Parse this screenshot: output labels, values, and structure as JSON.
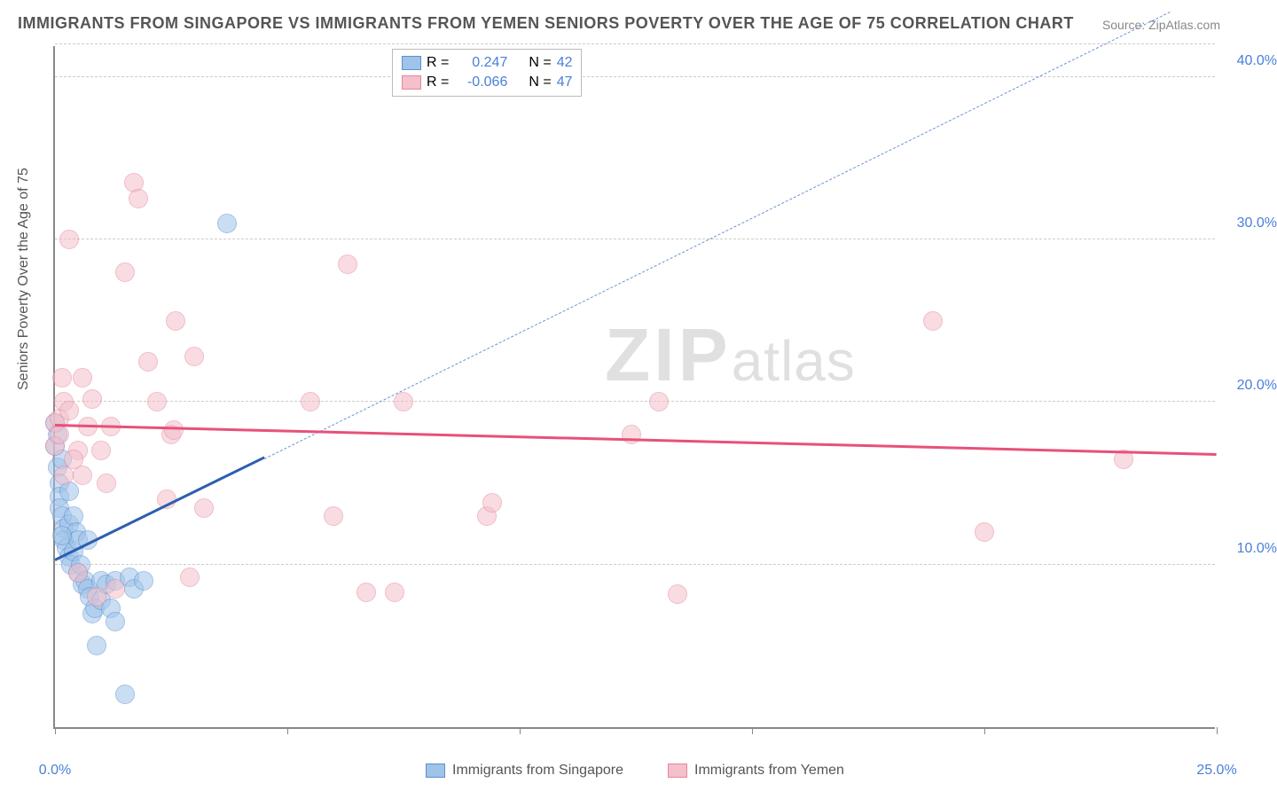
{
  "title": "IMMIGRANTS FROM SINGAPORE VS IMMIGRANTS FROM YEMEN SENIORS POVERTY OVER THE AGE OF 75 CORRELATION CHART",
  "source": "Source: ZipAtlas.com",
  "y_axis_label": "Seniors Poverty Over the Age of 75",
  "watermark_main": "ZIP",
  "watermark_sub": "atlas",
  "chart": {
    "type": "scatter",
    "xlim": [
      0,
      25
    ],
    "ylim": [
      0,
      42
    ],
    "x_ticks": [
      0,
      5,
      10,
      15,
      20,
      25
    ],
    "x_tick_labels": [
      "0.0%",
      "",
      "",
      "",
      "",
      "25.0%"
    ],
    "y_ticks": [
      10,
      20,
      30,
      40
    ],
    "y_tick_labels": [
      "10.0%",
      "20.0%",
      "30.0%",
      "40.0%"
    ],
    "grid_color": "#cccccc",
    "background_color": "#ffffff",
    "point_radius": 11,
    "point_stroke_width": 1.5,
    "series": [
      {
        "name": "Immigrants from Singapore",
        "fill": "#9fc4ea",
        "stroke": "#5b8fd0",
        "fill_opacity": 0.55,
        "R_label": "R =",
        "R": "0.247",
        "N_label": "N =",
        "N": "42",
        "trend_solid": {
          "x1": 0,
          "y1": 10.2,
          "x2": 4.5,
          "y2": 16.5,
          "color": "#2d5fb0",
          "width": 3
        },
        "trend_dashed": {
          "x1": 4.5,
          "y1": 16.5,
          "x2": 24,
          "y2": 44,
          "color": "#6a94d8",
          "width": 1.5,
          "dash": "8,6"
        },
        "points": [
          [
            0.0,
            18.7
          ],
          [
            0.0,
            17.3
          ],
          [
            0.05,
            16.0
          ],
          [
            0.1,
            15.0
          ],
          [
            0.1,
            14.2
          ],
          [
            0.1,
            13.5
          ],
          [
            0.15,
            16.5
          ],
          [
            0.15,
            13.0
          ],
          [
            0.2,
            12.2
          ],
          [
            0.2,
            11.5
          ],
          [
            0.25,
            11.0
          ],
          [
            0.3,
            10.5
          ],
          [
            0.3,
            12.5
          ],
          [
            0.35,
            10.0
          ],
          [
            0.4,
            13.0
          ],
          [
            0.4,
            10.8
          ],
          [
            0.45,
            12.0
          ],
          [
            0.5,
            9.5
          ],
          [
            0.5,
            11.5
          ],
          [
            0.55,
            10.0
          ],
          [
            0.6,
            8.8
          ],
          [
            0.65,
            9.0
          ],
          [
            0.7,
            8.5
          ],
          [
            0.7,
            11.5
          ],
          [
            0.75,
            8.0
          ],
          [
            0.8,
            7.0
          ],
          [
            0.85,
            7.3
          ],
          [
            0.9,
            5.0
          ],
          [
            1.0,
            9.0
          ],
          [
            1.0,
            7.8
          ],
          [
            1.1,
            8.8
          ],
          [
            1.2,
            7.3
          ],
          [
            1.3,
            9.0
          ],
          [
            1.3,
            6.5
          ],
          [
            1.5,
            2.0
          ],
          [
            1.6,
            9.2
          ],
          [
            1.7,
            8.5
          ],
          [
            1.9,
            9.0
          ],
          [
            3.7,
            31.0
          ],
          [
            0.05,
            18.0
          ],
          [
            0.3,
            14.5
          ],
          [
            0.15,
            11.8
          ]
        ]
      },
      {
        "name": "Immigrants from Yemen",
        "fill": "#f3c0cb",
        "stroke": "#e6869d",
        "fill_opacity": 0.55,
        "R_label": "R =",
        "R": "-0.066",
        "N_label": "N =",
        "N": "47",
        "trend_solid": {
          "x1": 0,
          "y1": 18.5,
          "x2": 25,
          "y2": 16.7,
          "color": "#e6517a",
          "width": 3
        },
        "points": [
          [
            0.0,
            18.7
          ],
          [
            0.0,
            17.3
          ],
          [
            0.1,
            19.0
          ],
          [
            0.1,
            18.0
          ],
          [
            0.15,
            21.5
          ],
          [
            0.2,
            20.0
          ],
          [
            0.3,
            19.5
          ],
          [
            0.3,
            30.0
          ],
          [
            0.5,
            17.0
          ],
          [
            0.6,
            15.5
          ],
          [
            0.6,
            21.5
          ],
          [
            0.7,
            18.5
          ],
          [
            0.8,
            20.2
          ],
          [
            0.9,
            8.0
          ],
          [
            1.0,
            17.0
          ],
          [
            1.1,
            15.0
          ],
          [
            1.2,
            18.5
          ],
          [
            1.3,
            8.5
          ],
          [
            1.5,
            28.0
          ],
          [
            1.7,
            33.5
          ],
          [
            1.8,
            32.5
          ],
          [
            2.0,
            22.5
          ],
          [
            2.2,
            20.0
          ],
          [
            2.4,
            14.0
          ],
          [
            2.5,
            18.0
          ],
          [
            2.55,
            18.3
          ],
          [
            2.6,
            25.0
          ],
          [
            2.9,
            9.2
          ],
          [
            3.0,
            22.8
          ],
          [
            3.2,
            13.5
          ],
          [
            5.5,
            20.0
          ],
          [
            6.0,
            13.0
          ],
          [
            6.3,
            28.5
          ],
          [
            6.7,
            8.3
          ],
          [
            7.3,
            8.3
          ],
          [
            7.5,
            20.0
          ],
          [
            9.3,
            13.0
          ],
          [
            9.4,
            13.8
          ],
          [
            12.4,
            18.0
          ],
          [
            13.0,
            20.0
          ],
          [
            13.4,
            8.2
          ],
          [
            18.9,
            25.0
          ],
          [
            20.0,
            12.0
          ],
          [
            23.0,
            16.5
          ],
          [
            0.2,
            15.5
          ],
          [
            0.4,
            16.5
          ],
          [
            0.5,
            9.5
          ]
        ]
      }
    ]
  }
}
